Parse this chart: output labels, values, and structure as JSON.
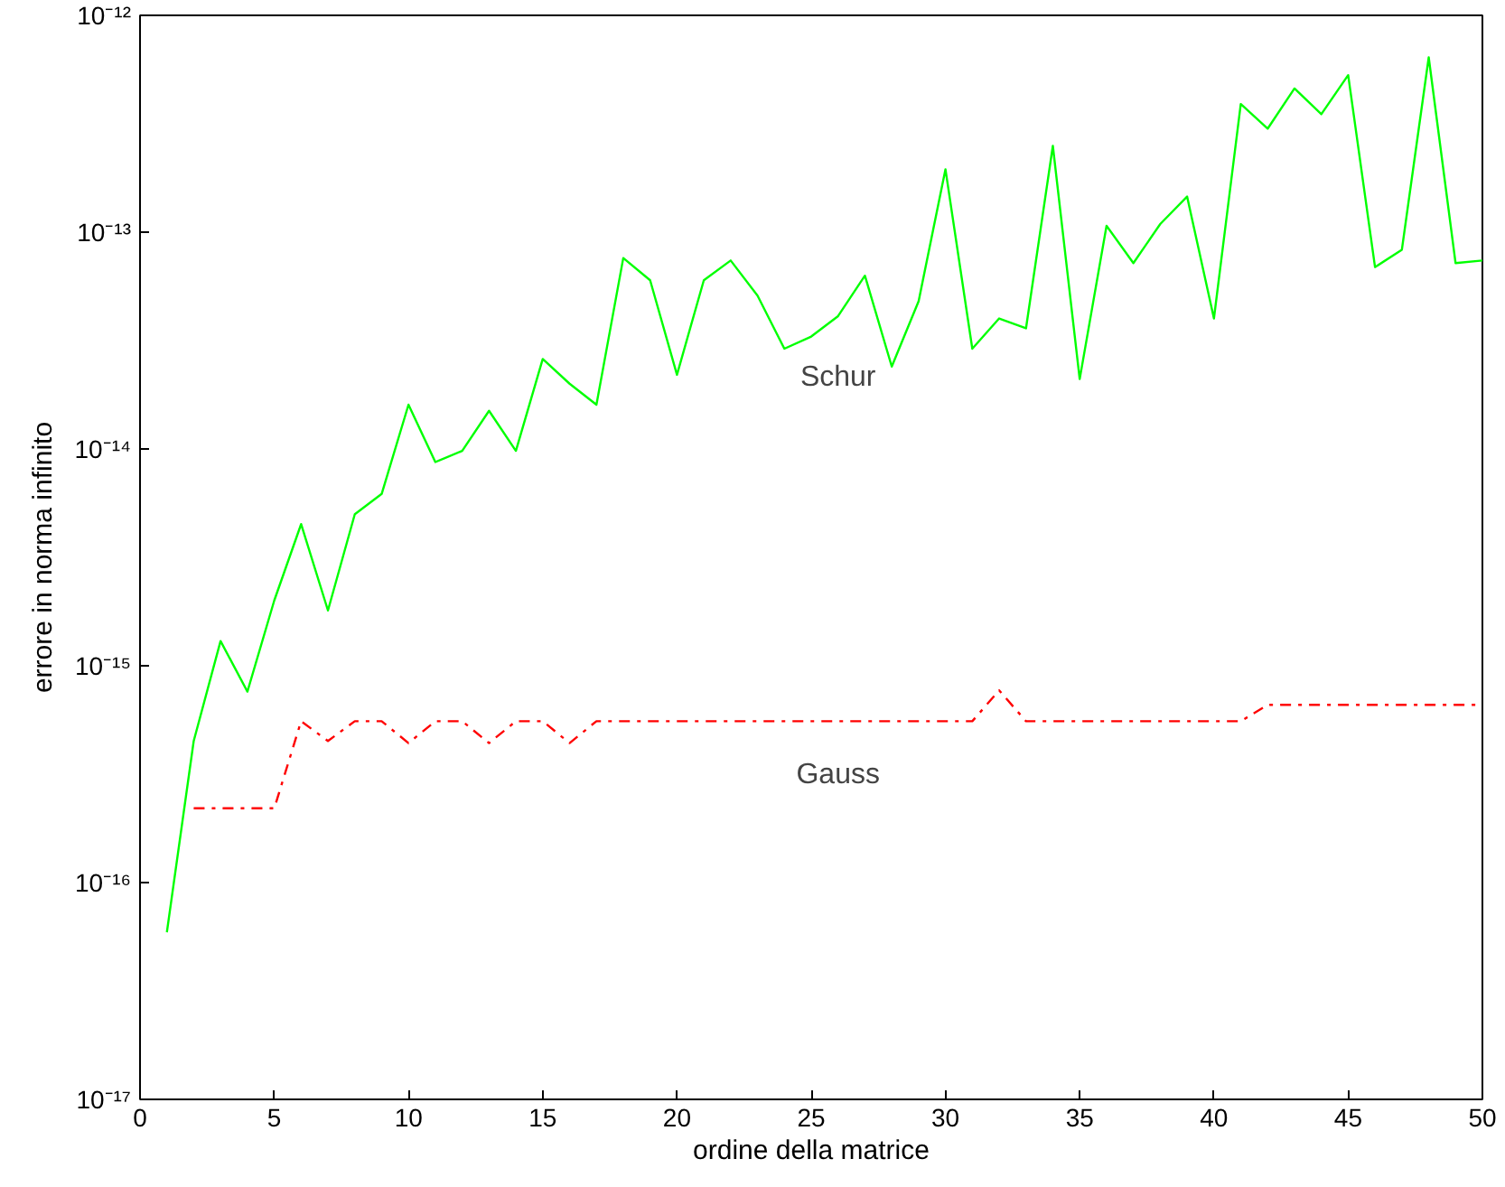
{
  "chart_data": {
    "type": "line",
    "xlabel": "ordine della matrice",
    "ylabel": "errore in norma infinito",
    "x": [
      1,
      2,
      3,
      4,
      5,
      6,
      7,
      8,
      9,
      10,
      11,
      12,
      13,
      14,
      15,
      16,
      17,
      18,
      19,
      20,
      21,
      22,
      23,
      24,
      25,
      26,
      27,
      28,
      29,
      30,
      31,
      32,
      33,
      34,
      35,
      36,
      37,
      38,
      39,
      40,
      41,
      42,
      43,
      44,
      45,
      46,
      47,
      48,
      49,
      50
    ],
    "series": [
      {
        "name": "Schur",
        "color": "#00ff00",
        "line_style": "solid",
        "values": [
          5.9e-17,
          4.5e-16,
          1.3e-15,
          7.6e-16,
          2e-15,
          4.5e-15,
          1.8e-15,
          5e-15,
          6.2e-15,
          1.6e-14,
          8.7e-15,
          9.8e-15,
          1.5e-14,
          9.8e-15,
          2.6e-14,
          2e-14,
          1.6e-14,
          7.6e-14,
          6e-14,
          2.2e-14,
          6e-14,
          7.4e-14,
          5.1e-14,
          2.9e-14,
          3.3e-14,
          4.1e-14,
          6.3e-14,
          2.4e-14,
          4.8e-14,
          1.95e-13,
          2.9e-14,
          4e-14,
          3.6e-14,
          2.5e-13,
          2.1e-14,
          1.07e-13,
          7.2e-14,
          1.09e-13,
          1.46e-13,
          4e-14,
          3.9e-13,
          3e-13,
          4.6e-13,
          3.5e-13,
          5.3e-13,
          6.9e-14,
          8.3e-14,
          6.4e-13,
          7.2e-14,
          7.4e-14
        ]
      },
      {
        "name": "Gauss",
        "color": "#ff0000",
        "line_style": "dashdot",
        "values": [
          null,
          2.2e-16,
          2.2e-16,
          2.2e-16,
          2.2e-16,
          5.55e-16,
          4.5e-16,
          5.55e-16,
          5.55e-16,
          4.4e-16,
          5.55e-16,
          5.55e-16,
          4.4e-16,
          5.55e-16,
          5.55e-16,
          4.4e-16,
          5.55e-16,
          5.55e-16,
          5.55e-16,
          5.55e-16,
          5.55e-16,
          5.55e-16,
          5.55e-16,
          5.55e-16,
          5.55e-16,
          5.55e-16,
          5.55e-16,
          5.55e-16,
          5.55e-16,
          5.55e-16,
          5.55e-16,
          7.7e-16,
          5.55e-16,
          5.55e-16,
          5.55e-16,
          5.55e-16,
          5.55e-16,
          5.55e-16,
          5.55e-16,
          5.55e-16,
          5.55e-16,
          6.6e-16,
          6.6e-16,
          6.6e-16,
          6.6e-16,
          6.6e-16,
          6.6e-16,
          6.6e-16,
          6.6e-16,
          6.6e-16
        ]
      }
    ],
    "xlim": [
      0,
      50
    ],
    "xticks": [
      0,
      5,
      10,
      15,
      20,
      25,
      30,
      35,
      40,
      45,
      50
    ],
    "ylim": [
      1e-17,
      1e-12
    ],
    "yticks": [
      {
        "value": 1e-17,
        "label": "10⁻¹⁷"
      },
      {
        "value": 1e-16,
        "label": "10⁻¹⁶"
      },
      {
        "value": 1e-15,
        "label": "10⁻¹⁵"
      },
      {
        "value": 1e-14,
        "label": "10⁻¹⁴"
      },
      {
        "value": 1e-13,
        "label": "10⁻¹³"
      },
      {
        "value": 1e-12,
        "label": "10⁻¹²"
      }
    ],
    "log": "y",
    "grid": false,
    "marker": "none"
  }
}
